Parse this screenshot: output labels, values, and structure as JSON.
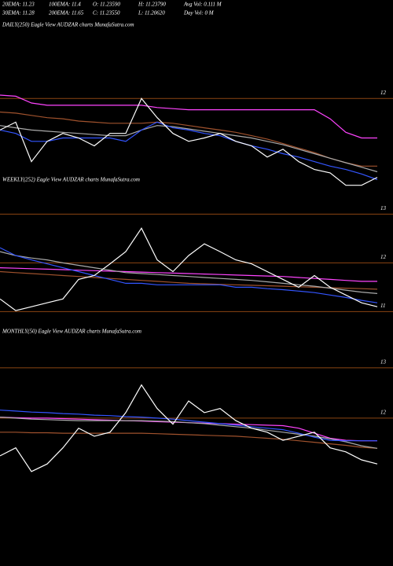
{
  "header": {
    "rows": [
      [
        "20EMA: 11.23",
        "100EMA: 11.4",
        "O: 11.23590",
        "H: 11.23790",
        "Avg Vol: 0.111 M"
      ],
      [
        "30EMA: 11.28",
        "200EMA: 11.65",
        "C: 11.23550",
        "L: 11.20620",
        "Day Vol: 0  M"
      ]
    ]
  },
  "chart_data": [
    {
      "type": "line",
      "title": "DAILY(250) Eagle  View  AUDZAR charts MunafaSutra.com",
      "ylim": [
        11.13,
        12.63
      ],
      "yticks": [
        12
      ],
      "grid": true,
      "grid_color": "#8b4513",
      "series": [
        {
          "color": "#ff44ff",
          "values": [
            12.03,
            12.02,
            11.96,
            11.94,
            11.94,
            11.94,
            11.94,
            11.94,
            11.94,
            11.94,
            11.92,
            11.91,
            11.9,
            11.9,
            11.9,
            11.9,
            11.9,
            11.9,
            11.9,
            11.9,
            11.9,
            11.82,
            11.7,
            11.65,
            11.65
          ]
        },
        {
          "color": "#a0522d",
          "values": [
            11.88,
            11.87,
            11.85,
            11.83,
            11.82,
            11.8,
            11.79,
            11.78,
            11.78,
            11.78,
            11.79,
            11.78,
            11.76,
            11.74,
            11.72,
            11.7,
            11.67,
            11.64,
            11.6,
            11.56,
            11.52,
            11.47,
            11.43,
            11.4,
            11.4
          ]
        },
        {
          "color": "#aaaaaa",
          "values": [
            11.76,
            11.74,
            11.72,
            11.71,
            11.7,
            11.69,
            11.68,
            11.67,
            11.67,
            11.72,
            11.76,
            11.75,
            11.73,
            11.71,
            11.69,
            11.67,
            11.65,
            11.62,
            11.59,
            11.55,
            11.51,
            11.47,
            11.43,
            11.39,
            11.35
          ]
        },
        {
          "color": "#3355ff",
          "values": [
            11.72,
            11.69,
            11.62,
            11.62,
            11.65,
            11.65,
            11.65,
            11.65,
            11.62,
            11.72,
            11.79,
            11.74,
            11.72,
            11.69,
            11.67,
            11.62,
            11.58,
            11.55,
            11.51,
            11.48,
            11.44,
            11.4,
            11.37,
            11.33,
            11.28
          ]
        },
        {
          "color": "#ffffff",
          "values": [
            11.72,
            11.79,
            11.44,
            11.62,
            11.69,
            11.65,
            11.58,
            11.69,
            11.69,
            12.0,
            11.83,
            11.69,
            11.62,
            11.65,
            11.69,
            11.62,
            11.58,
            11.48,
            11.55,
            11.44,
            11.37,
            11.34,
            11.23,
            11.23,
            11.3
          ]
        }
      ]
    },
    {
      "type": "line",
      "title": "WEEKLY(252) Eagle  View  AUDZAR charts MunafaSutra.com",
      "ylim": [
        10.7,
        13.65
      ],
      "yticks": [
        13,
        12,
        11
      ],
      "grid": true,
      "grid_color": "#8b4513",
      "series": [
        {
          "color": "#ff44ff",
          "values": [
            11.9,
            11.89,
            11.88,
            11.87,
            11.86,
            11.85,
            11.84,
            11.83,
            11.82,
            11.81,
            11.8,
            11.79,
            11.78,
            11.77,
            11.76,
            11.75,
            11.74,
            11.73,
            11.72,
            11.7,
            11.68,
            11.66,
            11.64,
            11.62,
            11.62
          ]
        },
        {
          "color": "#a0522d",
          "values": [
            11.82,
            11.8,
            11.78,
            11.76,
            11.74,
            11.72,
            11.7,
            11.68,
            11.66,
            11.64,
            11.62,
            11.6,
            11.58,
            11.57,
            11.56,
            11.55,
            11.54,
            11.53,
            11.52,
            11.51,
            11.5,
            11.49,
            11.48,
            11.47,
            11.46
          ]
        },
        {
          "color": "#aaaaaa",
          "values": [
            12.23,
            12.15,
            12.1,
            12.06,
            12.0,
            11.95,
            11.9,
            11.85,
            11.8,
            11.78,
            11.76,
            11.74,
            11.72,
            11.7,
            11.68,
            11.66,
            11.64,
            11.61,
            11.58,
            11.55,
            11.52,
            11.48,
            11.44,
            11.4,
            11.37
          ]
        },
        {
          "color": "#3355ff",
          "values": [
            12.31,
            12.15,
            12.06,
            11.98,
            11.9,
            11.82,
            11.74,
            11.66,
            11.58,
            11.58,
            11.55,
            11.55,
            11.55,
            11.55,
            11.55,
            11.5,
            11.5,
            11.47,
            11.45,
            11.42,
            11.39,
            11.34,
            11.29,
            11.23,
            11.18
          ]
        },
        {
          "color": "#ffffff",
          "values": [
            11.26,
            11.02,
            11.1,
            11.18,
            11.26,
            11.66,
            11.74,
            11.98,
            12.23,
            12.71,
            12.06,
            11.82,
            12.15,
            12.39,
            12.23,
            12.06,
            11.98,
            11.82,
            11.66,
            11.5,
            11.74,
            11.5,
            11.34,
            11.18,
            11.1
          ]
        }
      ]
    },
    {
      "type": "line",
      "title": "MONTHLY(50) Eagle  View  AUDZAR charts MunafaSutra.com",
      "ylim": [
        10.78,
        13.67
      ],
      "yticks": [
        13,
        12
      ],
      "grid": true,
      "grid_color": "#8b4513",
      "series": [
        {
          "color": "#ff44ff",
          "values": [
            12.02,
            12.01,
            12.0,
            12.0,
            11.99,
            11.98,
            11.97,
            11.96,
            11.95,
            11.94,
            11.93,
            11.92,
            11.91,
            11.9,
            11.89,
            11.88,
            11.87,
            11.86,
            11.85,
            11.8,
            11.7,
            11.6,
            11.56,
            11.55,
            11.55
          ]
        },
        {
          "color": "#a0522d",
          "values": [
            11.72,
            11.72,
            11.71,
            11.71,
            11.7,
            11.7,
            11.7,
            11.7,
            11.7,
            11.7,
            11.69,
            11.68,
            11.67,
            11.66,
            11.65,
            11.64,
            11.62,
            11.6,
            11.58,
            11.55,
            11.52,
            11.49,
            11.46,
            11.42,
            11.4
          ]
        },
        {
          "color": "#aaaaaa",
          "values": [
            12.02,
            12.0,
            11.98,
            11.97,
            11.96,
            11.95,
            11.95,
            11.95,
            11.95,
            11.95,
            11.94,
            11.93,
            11.91,
            11.89,
            11.86,
            11.83,
            11.8,
            11.76,
            11.72,
            11.68,
            11.64,
            11.59,
            11.53,
            11.45,
            11.4
          ]
        },
        {
          "color": "#3355ff",
          "values": [
            12.16,
            12.14,
            12.12,
            12.11,
            12.09,
            12.08,
            12.06,
            12.05,
            12.03,
            12.02,
            12.0,
            11.98,
            11.95,
            11.92,
            11.89,
            11.86,
            11.83,
            11.8,
            11.77,
            11.7,
            11.62,
            11.56,
            11.55,
            11.55,
            11.55
          ]
        },
        {
          "color": "#ffffff",
          "values": [
            11.25,
            11.41,
            10.94,
            11.09,
            11.41,
            11.8,
            11.64,
            11.72,
            12.11,
            12.66,
            12.19,
            11.88,
            12.34,
            12.11,
            12.19,
            11.95,
            11.8,
            11.72,
            11.56,
            11.64,
            11.72,
            11.41,
            11.33,
            11.17,
            11.09
          ]
        }
      ]
    }
  ]
}
